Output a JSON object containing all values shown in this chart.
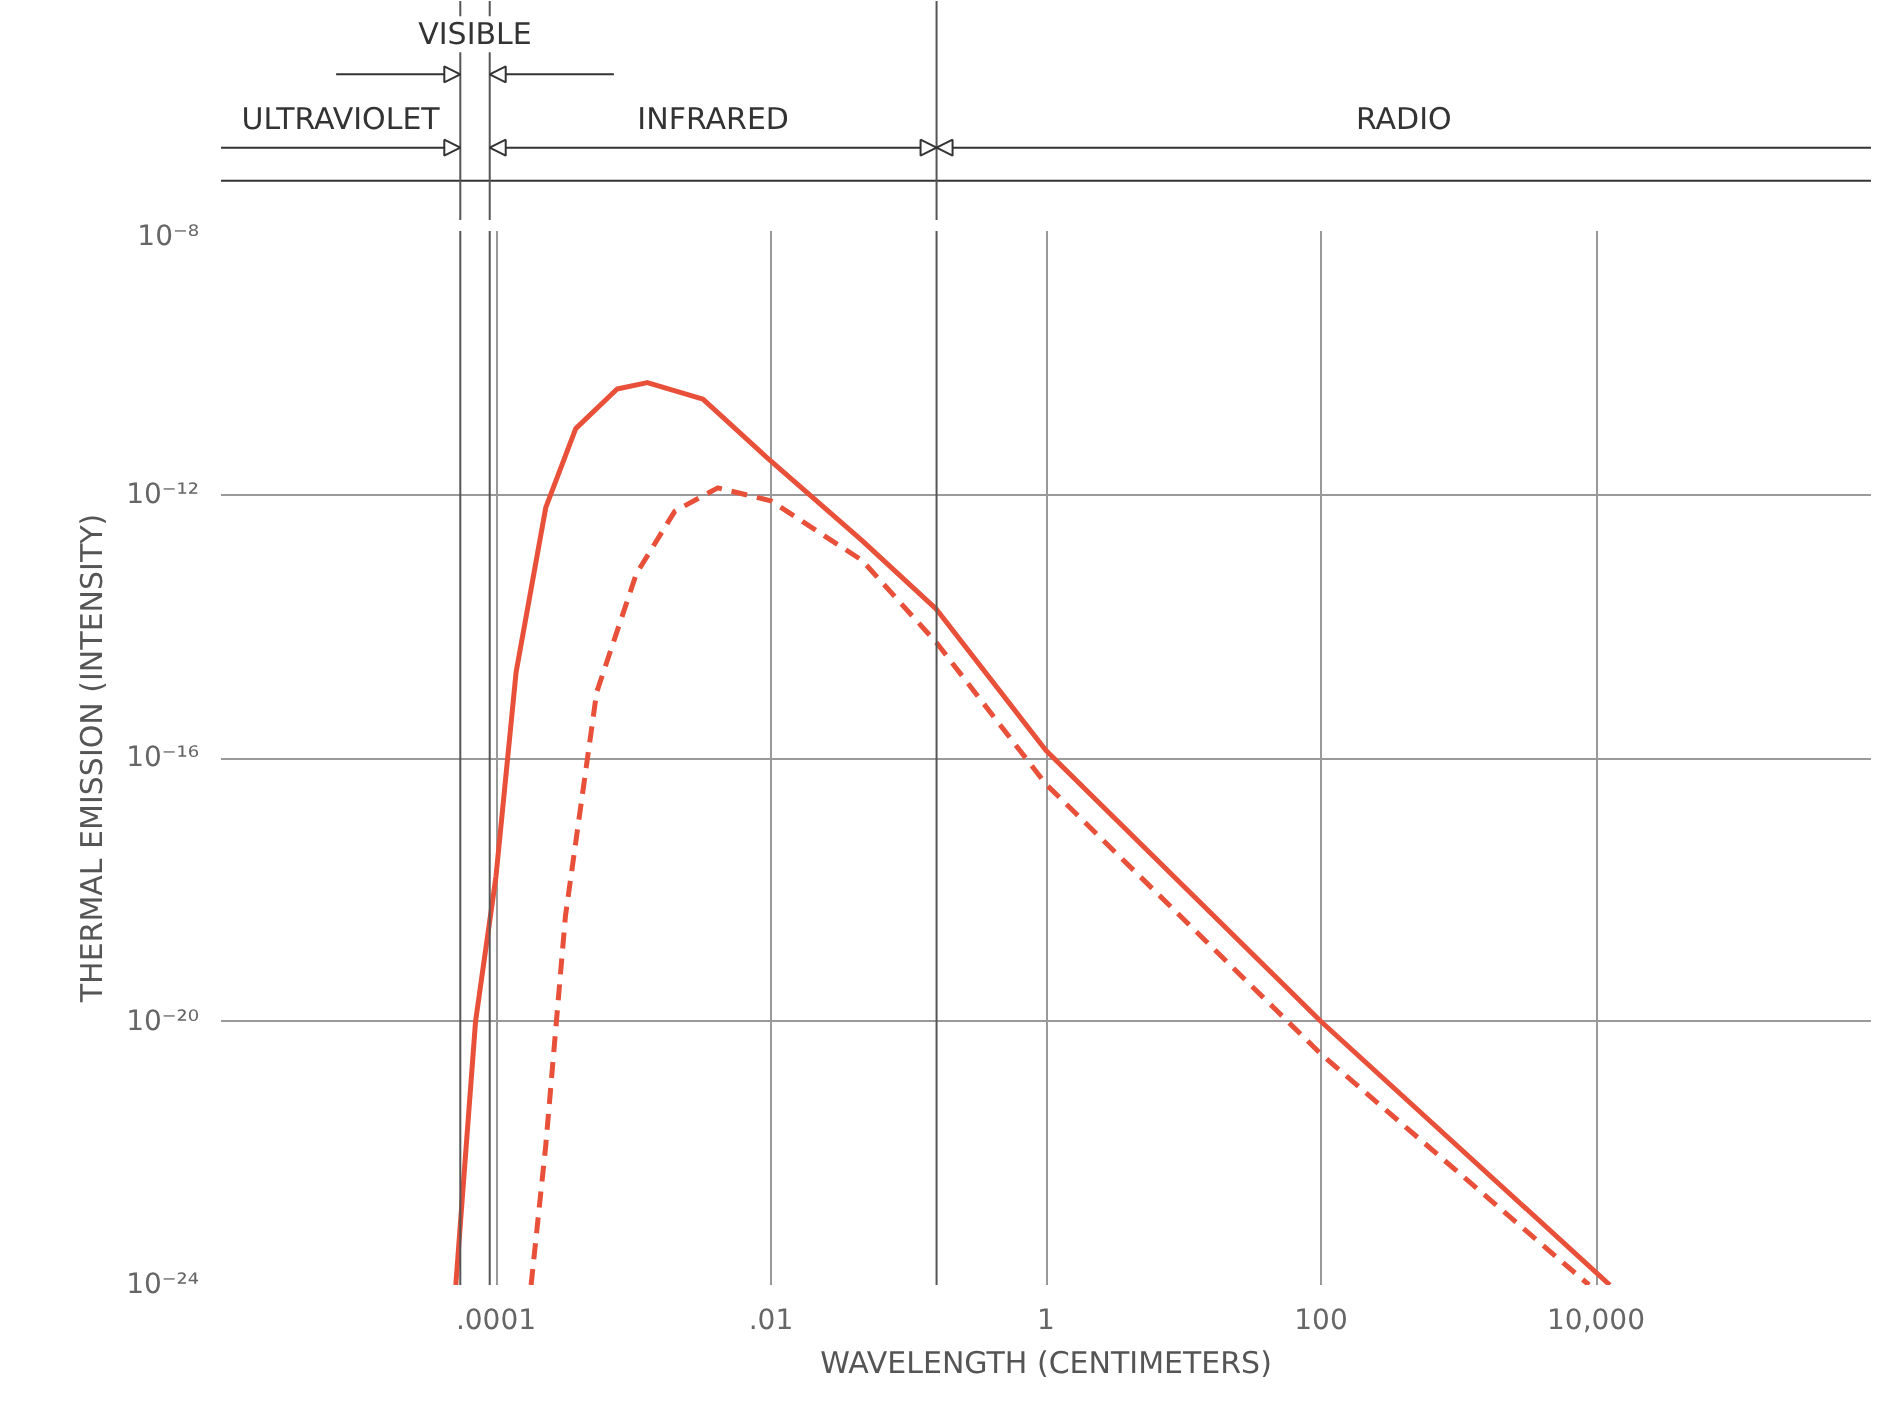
{
  "chart_data": {
    "type": "line",
    "xlabel": "WAVELENGTH (CENTIMETERS)",
    "ylabel": "THERMAL EMISSION (INTENSITY)",
    "log": "xy",
    "grid": true,
    "xlim": [
      1e-06,
      1000000.0
    ],
    "ylim": [
      1e-24,
      1e-08
    ],
    "xticks": [
      {
        "value": 0.0001,
        "label": ".0001"
      },
      {
        "value": 0.01,
        "label": ".01"
      },
      1,
      100,
      {
        "value": 10000,
        "label": "10,000"
      }
    ],
    "yticks": [
      {
        "value": 1e-24,
        "label": "10⁻²⁴"
      },
      {
        "value": 1e-20,
        "label": "10⁻²⁰"
      },
      {
        "value": 1e-16,
        "label": "10⁻¹⁶"
      },
      {
        "value": 1e-12,
        "label": "10⁻¹²"
      },
      {
        "value": 1e-08,
        "label": "10⁻⁸"
      }
    ],
    "ref_lines": [
      {
        "axis": "x",
        "value": 5.5e-05
      },
      {
        "axis": "x",
        "value": 9e-05
      },
      {
        "axis": "x",
        "value": 0.16
      }
    ],
    "annotations": [
      "ULTRAVIOLET",
      "VISIBLE",
      "INFRARED",
      "RADIO"
    ],
    "series": [
      {
        "color": "#e8503a",
        "line_style": "solid",
        "x": [
          5.1e-05,
          7.1e-05,
          0.0001,
          0.00014,
          0.00023,
          0.00038,
          0.00076,
          0.00126,
          0.0032,
          0.01,
          0.046,
          0.16,
          1,
          100,
          12600
        ],
        "values": [
          1e-24,
          1e-20,
          1.6e-18,
          2e-15,
          6.3e-13,
          1e-11,
          4e-11,
          5e-11,
          2.8e-11,
          3.2e-12,
          2e-13,
          1.8e-14,
          1.3e-16,
          1e-20,
          1e-24
        ]
      },
      {
        "color": "#e8503a",
        "line_style": "dashed",
        "x": [
          0.00018,
          0.00023,
          0.00032,
          0.00054,
          0.00105,
          0.002,
          0.0041,
          0.01,
          0.046,
          0.16,
          1,
          100,
          8900
        ],
        "values": [
          1e-24,
          1.3e-22,
          4e-19,
          1e-15,
          6.3e-14,
          5.6e-13,
          1.26e-12,
          8e-13,
          1e-13,
          5.6e-15,
          4e-17,
          3.2e-21,
          1e-24
        ]
      }
    ]
  }
}
